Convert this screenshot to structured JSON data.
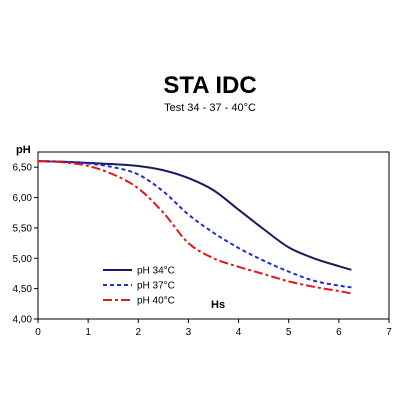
{
  "chart_data": {
    "type": "line",
    "title": "STA IDC",
    "subtitle": "Test 34 - 37 - 40°C",
    "xlabel": "Hs",
    "ylabel": "pH",
    "xlim": [
      0,
      7
    ],
    "ylim": [
      4.0,
      6.75
    ],
    "x_ticks": [
      "0",
      "1",
      "2",
      "3",
      "4",
      "5",
      "6",
      "7"
    ],
    "y_ticks": [
      "4,00",
      "4,50",
      "5,00",
      "5,50",
      "6,00",
      "6,50"
    ],
    "grid": false,
    "legend_position": "bottom-left",
    "series": [
      {
        "name": "pH  34°C",
        "color": "#1a1a5e",
        "style": "solid",
        "x": [
          0,
          0.5,
          1,
          1.5,
          2,
          2.5,
          3,
          3.5,
          4,
          4.5,
          5,
          5.5,
          6,
          6.25
        ],
        "y": [
          6.6,
          6.59,
          6.57,
          6.55,
          6.52,
          6.45,
          6.32,
          6.12,
          5.8,
          5.48,
          5.18,
          5.0,
          4.87,
          4.81
        ]
      },
      {
        "name": "pH  37°C",
        "color": "#1f2fd6",
        "style": "dotted",
        "x": [
          0,
          0.5,
          1,
          1.5,
          2,
          2.5,
          3,
          3.5,
          4,
          4.5,
          5,
          5.5,
          6,
          6.25
        ],
        "y": [
          6.6,
          6.59,
          6.56,
          6.5,
          6.38,
          6.1,
          5.72,
          5.42,
          5.17,
          4.96,
          4.78,
          4.63,
          4.55,
          4.52
        ]
      },
      {
        "name": "pH  40°C",
        "color": "#e01818",
        "style": "dashdot",
        "x": [
          0,
          0.5,
          1,
          1.5,
          2,
          2.5,
          3,
          3.5,
          4,
          4.5,
          5,
          5.5,
          6,
          6.25
        ],
        "y": [
          6.6,
          6.58,
          6.52,
          6.38,
          6.15,
          5.75,
          5.25,
          5.0,
          4.86,
          4.74,
          4.62,
          4.53,
          4.46,
          4.42
        ]
      }
    ]
  }
}
